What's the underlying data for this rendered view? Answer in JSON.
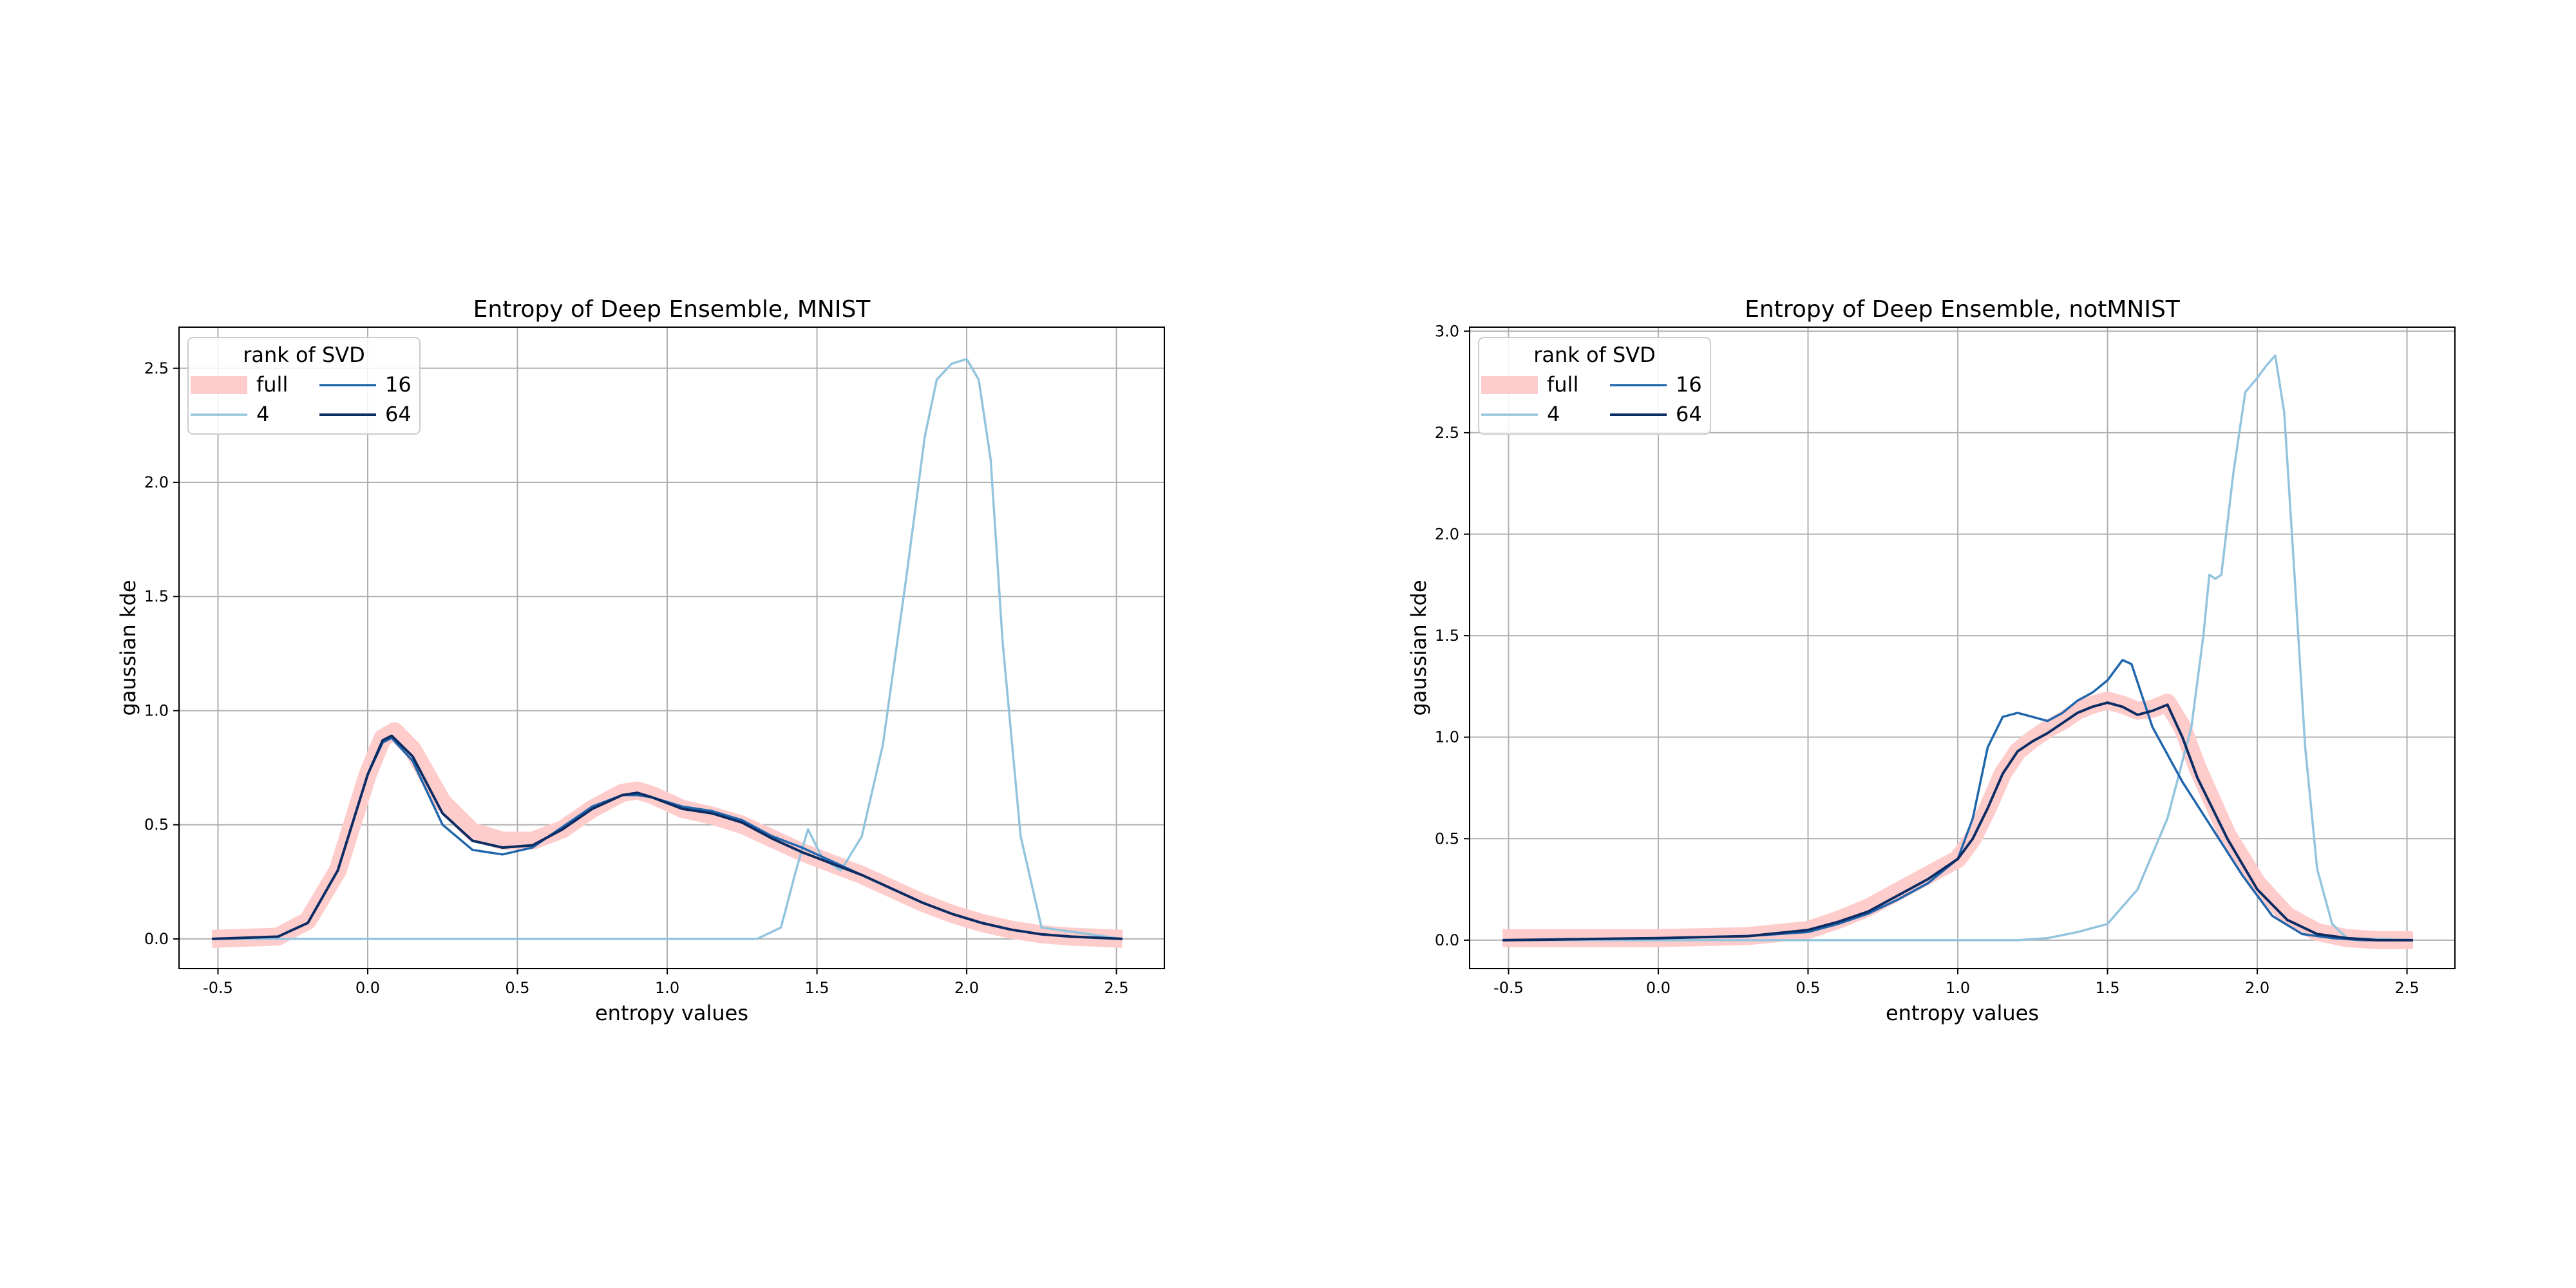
{
  "colors": {
    "full": "#ffcccc",
    "r4": "#93c4de",
    "r16": "#2066ac",
    "r64": "#0c2d64",
    "grid": "#b0b0b0"
  },
  "chart_data": [
    {
      "type": "line",
      "title": "Entropy of Deep Ensemble, MNIST",
      "xlabel": "entropy values",
      "ylabel": "gaussian kde",
      "xlim": [
        -0.63,
        2.66
      ],
      "ylim": [
        -0.13,
        2.68
      ],
      "xticks": [
        "-0.5",
        "0.0",
        "0.5",
        "1.0",
        "1.5",
        "2.0",
        "2.5"
      ],
      "yticks": [
        "0.0",
        "0.5",
        "1.0",
        "1.5",
        "2.0",
        "2.5"
      ],
      "grid": true,
      "legend": {
        "title": "rank of SVD",
        "placement": "upper-left",
        "entries": [
          "full",
          "16",
          "4",
          "64"
        ]
      },
      "series": [
        {
          "name": "full",
          "x": [
            -0.52,
            -0.3,
            -0.2,
            -0.1,
            0.0,
            0.05,
            0.09,
            0.15,
            0.25,
            0.35,
            0.45,
            0.55,
            0.65,
            0.75,
            0.85,
            0.9,
            0.95,
            1.05,
            1.15,
            1.25,
            1.35,
            1.45,
            1.55,
            1.65,
            1.75,
            1.85,
            1.95,
            2.05,
            2.15,
            2.25,
            2.35,
            2.52
          ],
          "y": [
            0.0,
            0.01,
            0.08,
            0.3,
            0.72,
            0.88,
            0.91,
            0.83,
            0.6,
            0.47,
            0.43,
            0.43,
            0.48,
            0.57,
            0.64,
            0.65,
            0.63,
            0.57,
            0.54,
            0.5,
            0.44,
            0.38,
            0.33,
            0.28,
            0.22,
            0.16,
            0.11,
            0.07,
            0.04,
            0.02,
            0.01,
            0.0
          ]
        },
        {
          "name": "4",
          "x": [
            -0.52,
            1.3,
            1.38,
            1.43,
            1.47,
            1.52,
            1.58,
            1.65,
            1.72,
            1.8,
            1.86,
            1.9,
            1.95,
            2.0,
            2.04,
            2.08,
            2.12,
            2.18,
            2.25,
            2.52
          ],
          "y": [
            0.0,
            0.0,
            0.05,
            0.3,
            0.48,
            0.35,
            0.3,
            0.45,
            0.85,
            1.6,
            2.2,
            2.45,
            2.52,
            2.54,
            2.45,
            2.1,
            1.3,
            0.45,
            0.05,
            0.0
          ]
        },
        {
          "name": "16",
          "x": [
            -0.52,
            -0.3,
            -0.2,
            -0.1,
            0.0,
            0.05,
            0.08,
            0.15,
            0.25,
            0.35,
            0.45,
            0.55,
            0.65,
            0.75,
            0.85,
            0.9,
            0.95,
            1.05,
            1.15,
            1.25,
            1.35,
            1.45,
            1.55,
            1.65,
            1.75,
            1.85,
            1.95,
            2.05,
            2.15,
            2.25,
            2.35,
            2.52
          ],
          "y": [
            0.0,
            0.01,
            0.07,
            0.3,
            0.72,
            0.86,
            0.88,
            0.78,
            0.5,
            0.39,
            0.37,
            0.4,
            0.49,
            0.58,
            0.63,
            0.63,
            0.62,
            0.58,
            0.56,
            0.52,
            0.45,
            0.4,
            0.34,
            0.28,
            0.22,
            0.16,
            0.11,
            0.07,
            0.04,
            0.02,
            0.01,
            0.0
          ]
        },
        {
          "name": "64",
          "x": [
            -0.52,
            -0.3,
            -0.2,
            -0.1,
            0.0,
            0.05,
            0.08,
            0.15,
            0.25,
            0.35,
            0.45,
            0.55,
            0.65,
            0.75,
            0.85,
            0.9,
            0.95,
            1.05,
            1.15,
            1.25,
            1.35,
            1.45,
            1.55,
            1.65,
            1.75,
            1.85,
            1.95,
            2.05,
            2.15,
            2.25,
            2.35,
            2.52
          ],
          "y": [
            0.0,
            0.01,
            0.07,
            0.3,
            0.72,
            0.87,
            0.89,
            0.8,
            0.55,
            0.43,
            0.4,
            0.41,
            0.48,
            0.57,
            0.63,
            0.64,
            0.62,
            0.57,
            0.55,
            0.51,
            0.44,
            0.38,
            0.33,
            0.28,
            0.22,
            0.16,
            0.11,
            0.07,
            0.04,
            0.02,
            0.01,
            0.0
          ]
        }
      ]
    },
    {
      "type": "line",
      "title": "Entropy of Deep Ensemble, notMNIST",
      "xlabel": "entropy values",
      "ylabel": "gaussian kde",
      "xlim": [
        -0.63,
        2.66
      ],
      "ylim": [
        -0.14,
        3.02
      ],
      "xticks": [
        "-0.5",
        "0.0",
        "0.5",
        "1.0",
        "1.5",
        "2.0",
        "2.5"
      ],
      "yticks": [
        "0.0",
        "0.5",
        "1.0",
        "1.5",
        "2.0",
        "2.5",
        "3.0"
      ],
      "grid": true,
      "legend": {
        "title": "rank of SVD",
        "placement": "upper-left",
        "entries": [
          "full",
          "16",
          "4",
          "64"
        ]
      },
      "series": [
        {
          "name": "full",
          "x": [
            -0.52,
            0.0,
            0.3,
            0.5,
            0.6,
            0.7,
            0.8,
            0.9,
            1.0,
            1.05,
            1.1,
            1.15,
            1.2,
            1.25,
            1.3,
            1.35,
            1.4,
            1.45,
            1.5,
            1.55,
            1.6,
            1.65,
            1.7,
            1.75,
            1.8,
            1.9,
            2.0,
            2.1,
            2.2,
            2.3,
            2.4,
            2.52
          ],
          "y": [
            0.01,
            0.01,
            0.02,
            0.05,
            0.1,
            0.16,
            0.24,
            0.32,
            0.4,
            0.5,
            0.65,
            0.82,
            0.93,
            0.99,
            1.04,
            1.08,
            1.13,
            1.16,
            1.18,
            1.16,
            1.13,
            1.14,
            1.17,
            1.05,
            0.85,
            0.52,
            0.28,
            0.12,
            0.04,
            0.01,
            0.0,
            0.0
          ]
        },
        {
          "name": "4",
          "x": [
            -0.52,
            1.2,
            1.3,
            1.4,
            1.5,
            1.6,
            1.7,
            1.78,
            1.82,
            1.84,
            1.86,
            1.88,
            1.92,
            1.96,
            2.0,
            2.03,
            2.06,
            2.09,
            2.12,
            2.16,
            2.2,
            2.25,
            2.3,
            2.52
          ],
          "y": [
            0.0,
            0.0,
            0.01,
            0.04,
            0.08,
            0.25,
            0.6,
            1.05,
            1.5,
            1.8,
            1.78,
            1.8,
            2.3,
            2.7,
            2.77,
            2.83,
            2.88,
            2.6,
            1.9,
            0.95,
            0.35,
            0.08,
            0.01,
            0.0
          ]
        },
        {
          "name": "16",
          "x": [
            -0.52,
            0.0,
            0.3,
            0.5,
            0.6,
            0.7,
            0.8,
            0.9,
            1.0,
            1.05,
            1.1,
            1.15,
            1.2,
            1.25,
            1.3,
            1.35,
            1.4,
            1.45,
            1.5,
            1.55,
            1.58,
            1.65,
            1.75,
            1.85,
            1.95,
            2.05,
            2.15,
            2.25,
            2.35,
            2.52
          ],
          "y": [
            0.0,
            0.01,
            0.02,
            0.04,
            0.08,
            0.13,
            0.2,
            0.28,
            0.4,
            0.6,
            0.95,
            1.1,
            1.12,
            1.1,
            1.08,
            1.12,
            1.18,
            1.22,
            1.28,
            1.38,
            1.36,
            1.05,
            0.78,
            0.55,
            0.32,
            0.12,
            0.03,
            0.01,
            0.0,
            0.0
          ]
        },
        {
          "name": "64",
          "x": [
            -0.52,
            0.0,
            0.3,
            0.5,
            0.6,
            0.7,
            0.8,
            0.9,
            1.0,
            1.05,
            1.1,
            1.15,
            1.2,
            1.25,
            1.3,
            1.35,
            1.4,
            1.45,
            1.5,
            1.55,
            1.6,
            1.65,
            1.7,
            1.75,
            1.8,
            1.9,
            2.0,
            2.1,
            2.2,
            2.3,
            2.4,
            2.52
          ],
          "y": [
            0.0,
            0.01,
            0.02,
            0.05,
            0.09,
            0.14,
            0.22,
            0.3,
            0.4,
            0.5,
            0.65,
            0.82,
            0.93,
            0.98,
            1.02,
            1.07,
            1.12,
            1.15,
            1.17,
            1.15,
            1.11,
            1.13,
            1.16,
            1.0,
            0.8,
            0.5,
            0.25,
            0.1,
            0.03,
            0.01,
            0.0,
            0.0
          ]
        }
      ]
    }
  ]
}
